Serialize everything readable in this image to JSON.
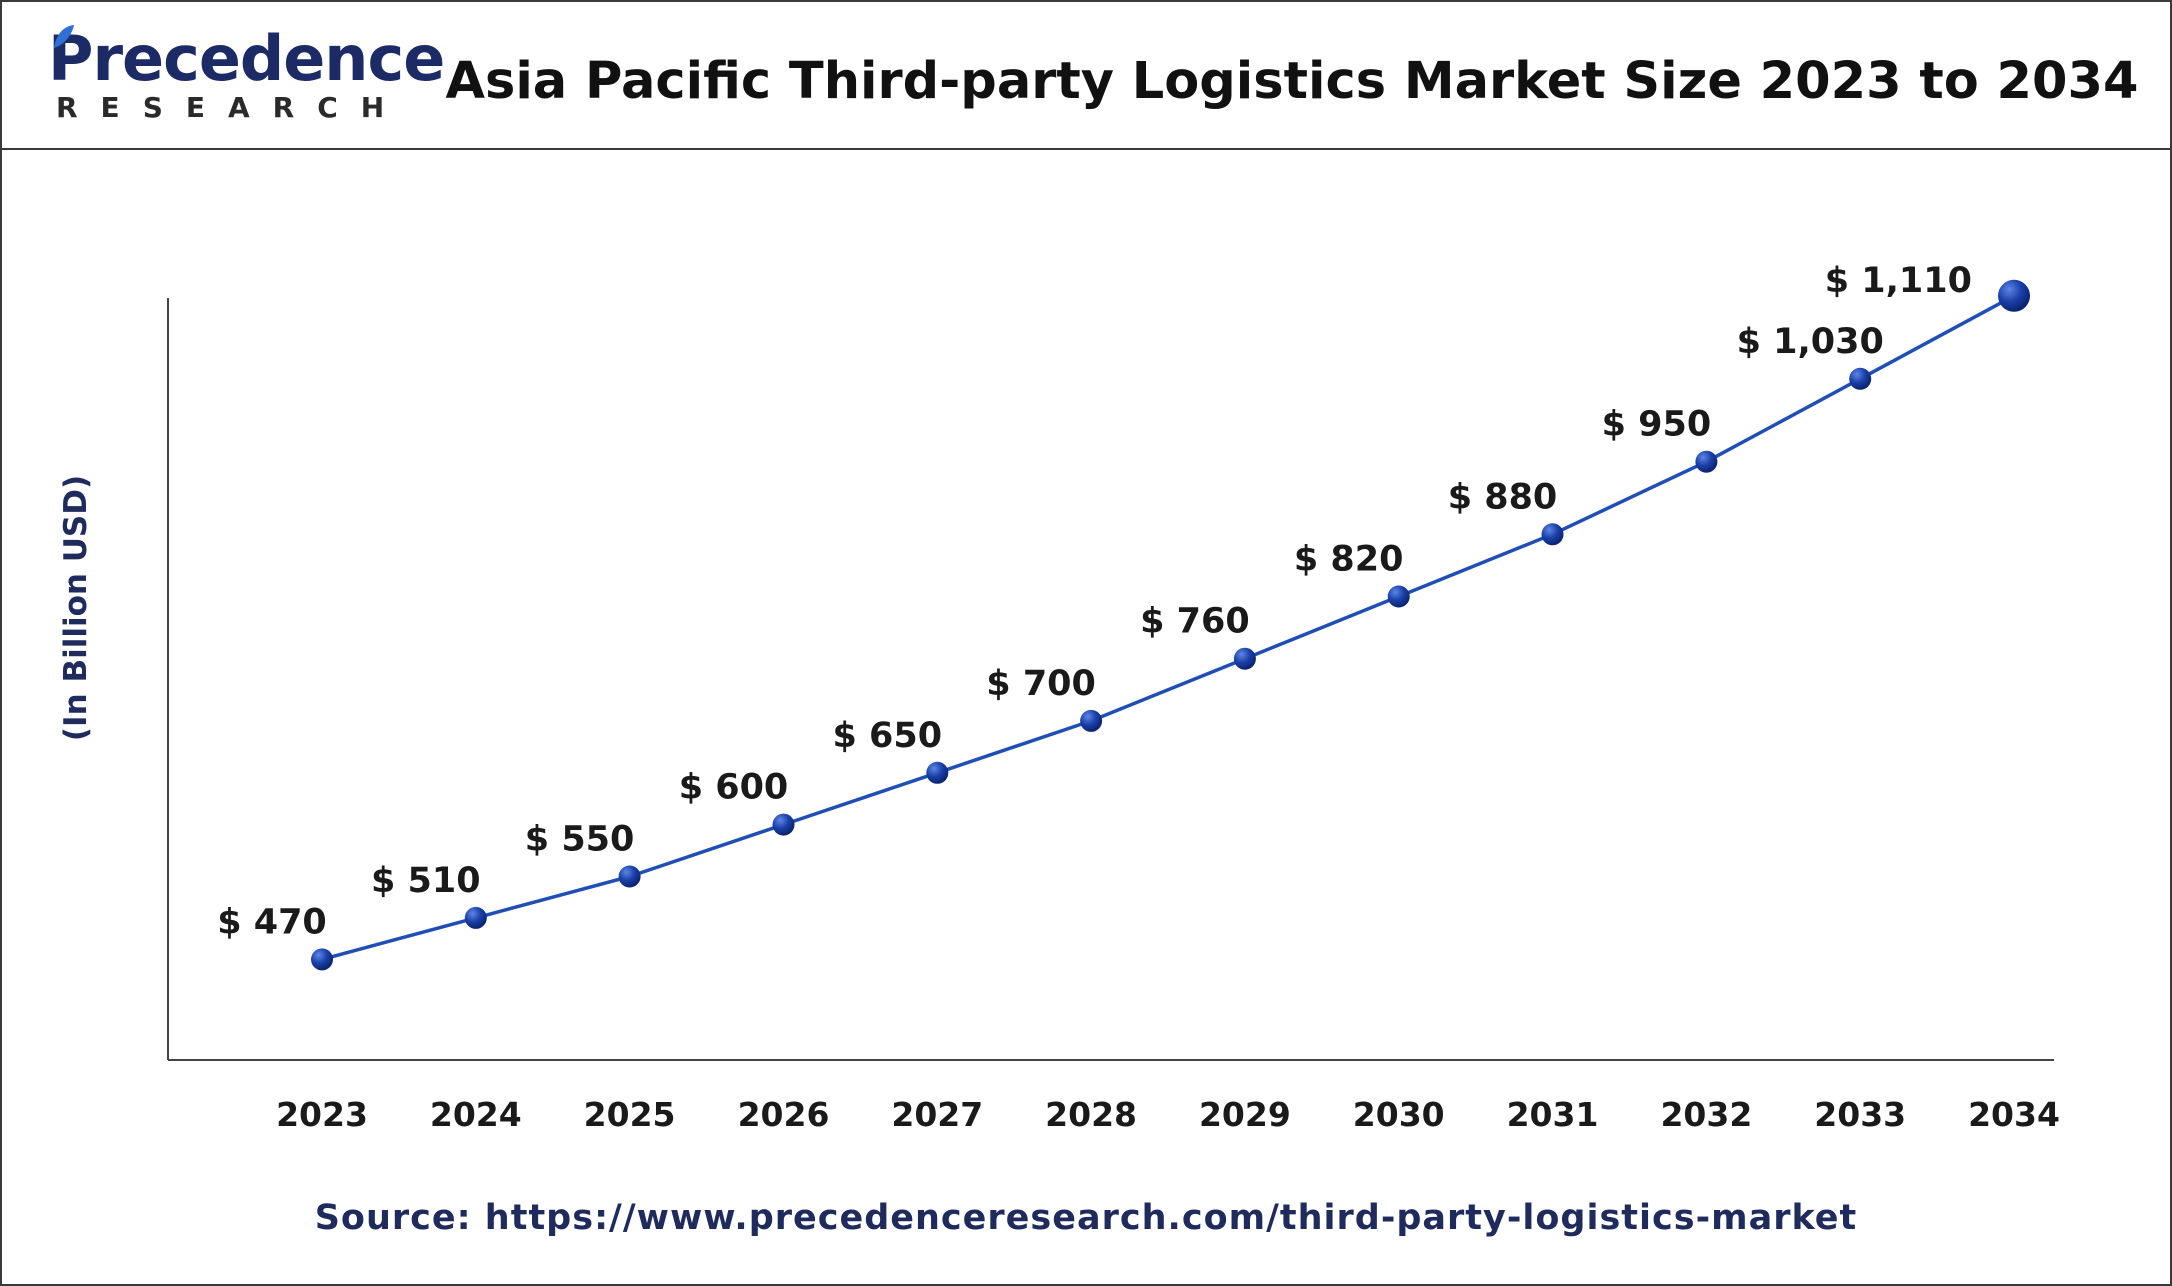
{
  "header": {
    "logo_word": "Precedence",
    "logo_sub": "RESEARCH",
    "title": "Asia Pacific Third-party Logistics Market Size 2023 to 2034"
  },
  "source": "Source: https://www.precedenceresearch.com/third-party-logistics-market",
  "colors": {
    "line": "#1f4fb5",
    "marker": "#0d2f8f",
    "axis": "#444444",
    "brand": "#1c2a66"
  },
  "chart_data": {
    "type": "line",
    "categories": [
      "2023",
      "2024",
      "2025",
      "2026",
      "2027",
      "2028",
      "2029",
      "2030",
      "2031",
      "2032",
      "2033",
      "2034"
    ],
    "series": [
      {
        "values": [
          470,
          510,
          550,
          600,
          650,
          700,
          760,
          820,
          880,
          950,
          1030,
          1110
        ],
        "data_labels": [
          "$ 470",
          "$ 510",
          "$ 550",
          "$ 600",
          "$ 650",
          "$ 700",
          "$ 760",
          "$ 820",
          "$ 880",
          "$ 950",
          "$ 1,030",
          "$ 1,110"
        ]
      }
    ],
    "ylabel": "(In Billion USD)",
    "xlabel": "",
    "ylim": [
      400,
      1160
    ],
    "grid": false,
    "legend": "none"
  }
}
